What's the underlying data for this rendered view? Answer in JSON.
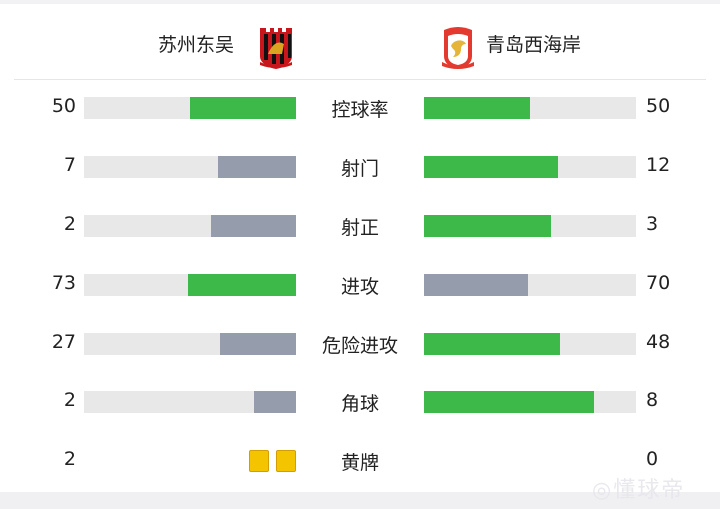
{
  "home": {
    "name": "苏州东吴"
  },
  "away": {
    "name": "青岛西海岸"
  },
  "colors": {
    "leader": "#3db94a",
    "trailer": "#959cab",
    "track": "#e8e8e8",
    "card": "#f5c400"
  },
  "stats": [
    {
      "label": "控球率",
      "home": 50,
      "away": 50
    },
    {
      "label": "射门",
      "home": 7,
      "away": 12
    },
    {
      "label": "射正",
      "home": 2,
      "away": 3
    },
    {
      "label": "进攻",
      "home": 73,
      "away": 70
    },
    {
      "label": "危险进攻",
      "home": 27,
      "away": 48
    },
    {
      "label": "角球",
      "home": 2,
      "away": 8
    }
  ],
  "cards": {
    "label": "黄牌",
    "home": 2,
    "away": 0,
    "icon": "yellow-card-icon"
  },
  "watermark": "懂球帝"
}
